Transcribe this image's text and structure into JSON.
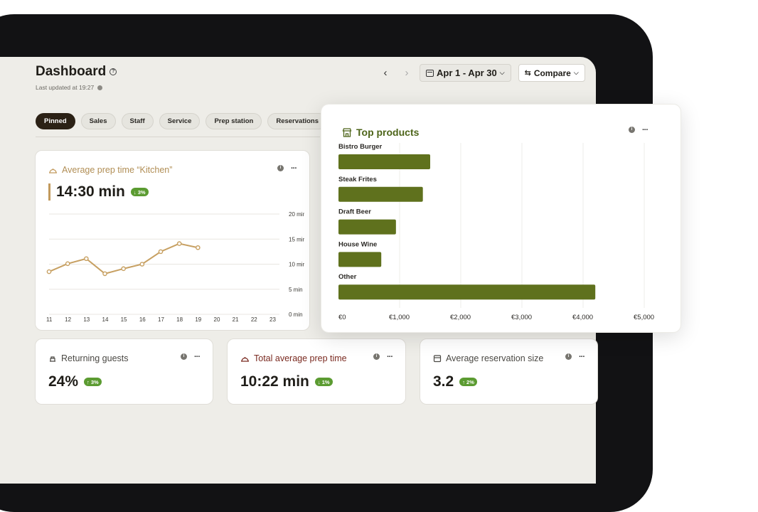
{
  "header": {
    "title": "Dashboard",
    "last_updated": "Last updated at 19:27",
    "prev_icon": "chevron-left-icon",
    "next_icon": "chevron-right-icon",
    "date_range": "Apr 1 - Apr 30",
    "compare_label": "Compare"
  },
  "tabs": [
    {
      "label": "Pinned",
      "active": true
    },
    {
      "label": "Sales"
    },
    {
      "label": "Staff"
    },
    {
      "label": "Service"
    },
    {
      "label": "Prep station"
    },
    {
      "label": "Reservations"
    }
  ],
  "prep_card": {
    "title": "Average prep time “Kitchen”",
    "value": "14:30 min",
    "badge": "↓ 3%",
    "badge_color": "#5b9b31",
    "accent": "#c29a5d"
  },
  "chart_data": [
    {
      "type": "line",
      "title": "Average prep time “Kitchen”",
      "x": [
        "11",
        "12",
        "13",
        "14",
        "15",
        "16",
        "17",
        "18",
        "19",
        "20",
        "21",
        "22",
        "23"
      ],
      "series": [
        {
          "values": [
            8.5,
            10.1,
            11.1,
            8.1,
            9.1,
            10.0,
            12.5,
            14.1,
            13.3,
            null,
            null,
            null,
            null
          ]
        }
      ],
      "ytick_labels": [
        "20 min",
        "15 min",
        "10 min",
        "5 min",
        "0 min"
      ],
      "ylim": [
        0,
        20
      ],
      "grid": true,
      "color": "#c7a062"
    },
    {
      "type": "bar",
      "orientation": "horizontal",
      "title": "Top products",
      "categories": [
        "Bistro Burger",
        "Steak Frites",
        "Draft Beer",
        "House Wine",
        "Other"
      ],
      "values": [
        1500,
        1380,
        940,
        700,
        4200
      ],
      "xtick_labels": [
        "€0",
        "€1,000",
        "€2,000",
        "€3,000",
        "€4,000",
        "€5,000"
      ],
      "xlim": [
        0,
        5000
      ],
      "color": "#5f711d"
    }
  ],
  "top_card": {
    "title": "Top products"
  },
  "small_cards": [
    {
      "title": "Returning guests",
      "icon": "guests-icon",
      "value": "24%",
      "badge": "↑ 3%",
      "title_color": "#4a4843"
    },
    {
      "title": "Total average prep time",
      "icon": "cloche-icon",
      "value": "10:22 min",
      "badge": "↓ 1%",
      "title_color": "#7a2a20"
    },
    {
      "title": "Average reservation size",
      "icon": "reservation-icon",
      "value": "3.2",
      "badge": "↑ 2%",
      "title_color": "#4a4843"
    }
  ]
}
